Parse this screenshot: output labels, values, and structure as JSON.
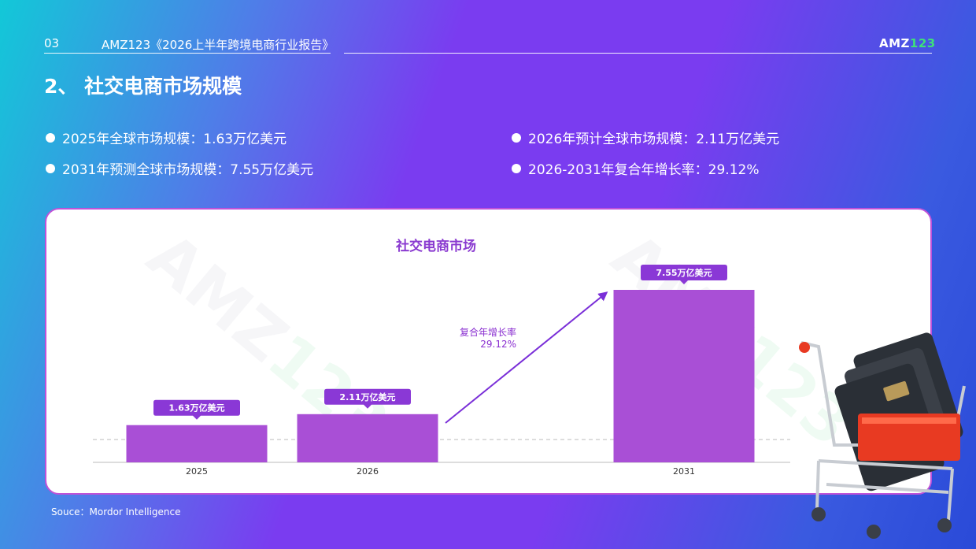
{
  "header": {
    "page_number": "03",
    "report_title": "AMZ123《2026上半年跨境电商行业报告》",
    "logo_main": "AMZ",
    "logo_accent": "123"
  },
  "page_title": "2、 社交电商市场规模",
  "bullets": [
    "2025年全球市场规模：1.63万亿美元",
    "2026年预计全球市场规模：2.11万亿美元",
    "2031年预测全球市场规模：7.55万亿美元",
    "2026-2031年复合年增长率：29.12%"
  ],
  "watermark": {
    "main": "AMZ",
    "accent": "123"
  },
  "annotation": {
    "label": "复合年增长率",
    "value": "29.12%"
  },
  "source": "Souce：Mordor Intelligence",
  "colors": {
    "bar": "#a94fd6",
    "label_bg": "#8a38d6",
    "title": "#8a3ad0"
  },
  "chart_data": {
    "type": "bar",
    "title": "社交电商市场",
    "categories": [
      "2025",
      "2026",
      "2031"
    ],
    "values": [
      1.63,
      2.11,
      7.55
    ],
    "data_labels": [
      "1.63万亿美元",
      "2.11万亿美元",
      "7.55万亿美元"
    ],
    "ylim": [
      0,
      8.5
    ],
    "grid": false
  }
}
